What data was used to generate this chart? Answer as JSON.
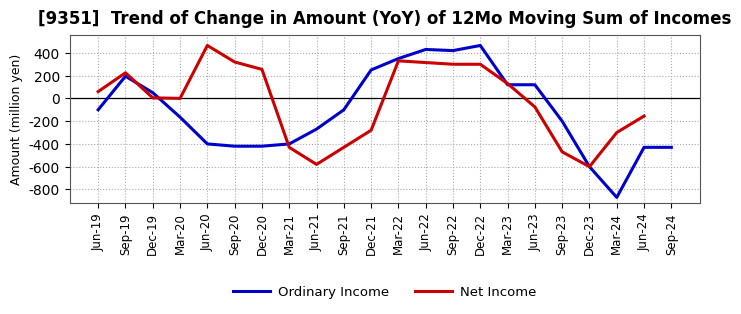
{
  "title": "[9351]  Trend of Change in Amount (YoY) of 12Mo Moving Sum of Incomes",
  "ylabel": "Amount (million yen)",
  "x_labels": [
    "Jun-19",
    "Sep-19",
    "Dec-19",
    "Mar-20",
    "Jun-20",
    "Sep-20",
    "Dec-20",
    "Mar-21",
    "Jun-21",
    "Sep-21",
    "Dec-21",
    "Mar-22",
    "Jun-22",
    "Sep-22",
    "Dec-22",
    "Mar-23",
    "Jun-23",
    "Sep-23",
    "Dec-23",
    "Mar-24",
    "Jun-24",
    "Sep-24"
  ],
  "ordinary_income": [
    -100,
    195,
    50,
    -165,
    -400,
    -420,
    -420,
    -400,
    -270,
    -100,
    250,
    350,
    430,
    420,
    465,
    120,
    120,
    -200,
    -600,
    -870,
    -430,
    -430
  ],
  "net_income": [
    60,
    225,
    5,
    0,
    465,
    320,
    255,
    -430,
    -580,
    -430,
    -280,
    330,
    315,
    300,
    300,
    130,
    -75,
    -470,
    -600,
    -300,
    -155,
    null
  ],
  "ordinary_income_color": "#0000cc",
  "net_income_color": "#cc0000",
  "background_color": "#ffffff",
  "grid_color": "#aaaaaa",
  "ylim": [
    -920,
    560
  ],
  "yticks": [
    -800,
    -600,
    -400,
    -200,
    0,
    200,
    400
  ],
  "legend_ordinary": "Ordinary Income",
  "legend_net": "Net Income",
  "line_width": 2.2,
  "title_fontsize": 12,
  "tick_fontsize": 8.5,
  "ylabel_fontsize": 9
}
